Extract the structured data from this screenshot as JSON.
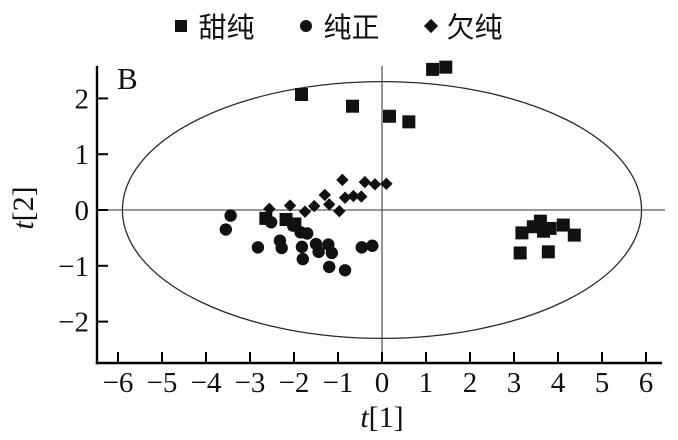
{
  "figure": {
    "panel_label": "B",
    "xlabel_var": "t",
    "xlabel_comp": "[1]",
    "ylabel_var": "t",
    "ylabel_comp": "[2]"
  },
  "legend": {
    "items": [
      {
        "label": "甜纯",
        "marker": "square"
      },
      {
        "label": "纯正",
        "marker": "circle"
      },
      {
        "label": "欠纯",
        "marker": "diamond"
      }
    ]
  },
  "colors": {
    "marker": "#111111",
    "axis": "#000000",
    "reference_line": "#5a5a5a",
    "ellipse_line": "#2b2b2b",
    "background": "#ffffff"
  },
  "chart_data": {
    "type": "scatter",
    "panel": "B",
    "xlabel": "t[1]",
    "ylabel": "t[2]",
    "xlim": [
      -6.5,
      6.4
    ],
    "ylim": [
      -2.75,
      2.6
    ],
    "x_ticks": [
      -6,
      -5,
      -4,
      -3,
      -2,
      -1,
      0,
      1,
      2,
      3,
      4,
      5,
      6
    ],
    "x_tick_labels": [
      "−6",
      "−5",
      "−4",
      "−3",
      "−2",
      "−1",
      "0",
      "1",
      "2",
      "3",
      "4",
      "5",
      "6"
    ],
    "y_ticks": [
      -2,
      -1,
      0,
      1,
      2
    ],
    "y_tick_labels": [
      "−2",
      "−1",
      "0",
      "1",
      "2"
    ],
    "grid": false,
    "legend_position": "top",
    "zero_lines": true,
    "ellipse": {
      "cx": 0,
      "cy": 0,
      "rx": 5.9,
      "ry": 2.3
    },
    "series": [
      {
        "name": "甜纯",
        "marker": "square",
        "points": [
          [
            1.15,
            2.52
          ],
          [
            1.45,
            2.56
          ],
          [
            -1.83,
            2.07
          ],
          [
            -0.67,
            1.86
          ],
          [
            0.17,
            1.68
          ],
          [
            0.61,
            1.58
          ],
          [
            -2.64,
            -0.15
          ],
          [
            -2.18,
            -0.17
          ],
          [
            -1.98,
            -0.25
          ],
          [
            3.18,
            -0.41
          ],
          [
            3.44,
            -0.3
          ],
          [
            3.6,
            -0.2
          ],
          [
            3.67,
            -0.38
          ],
          [
            3.82,
            -0.33
          ],
          [
            4.12,
            -0.27
          ],
          [
            4.37,
            -0.45
          ],
          [
            3.14,
            -0.77
          ],
          [
            3.78,
            -0.75
          ]
        ]
      },
      {
        "name": "纯正",
        "marker": "circle",
        "points": [
          [
            -3.44,
            -0.1
          ],
          [
            -3.55,
            -0.35
          ],
          [
            -2.82,
            -0.67
          ],
          [
            -2.52,
            -0.22
          ],
          [
            -2.32,
            -0.55
          ],
          [
            -2.28,
            -0.68
          ],
          [
            -2.02,
            -0.28
          ],
          [
            -1.85,
            -0.4
          ],
          [
            -1.82,
            -0.66
          ],
          [
            -1.8,
            -0.88
          ],
          [
            -1.7,
            -0.42
          ],
          [
            -1.5,
            -0.61
          ],
          [
            -1.44,
            -0.75
          ],
          [
            -1.22,
            -0.62
          ],
          [
            -1.14,
            -0.77
          ],
          [
            -1.2,
            -1.02
          ],
          [
            -0.84,
            -1.08
          ],
          [
            -0.46,
            -0.67
          ],
          [
            -0.22,
            -0.64
          ]
        ]
      },
      {
        "name": "欠纯",
        "marker": "diamond",
        "points": [
          [
            -2.56,
            0.02
          ],
          [
            -2.09,
            0.08
          ],
          [
            -1.75,
            -0.03
          ],
          [
            -1.54,
            0.07
          ],
          [
            -1.3,
            0.27
          ],
          [
            -1.2,
            0.1
          ],
          [
            -0.97,
            -0.02
          ],
          [
            -0.9,
            0.54
          ],
          [
            -0.84,
            0.22
          ],
          [
            -0.65,
            0.25
          ],
          [
            -0.47,
            0.24
          ],
          [
            -0.39,
            0.5
          ],
          [
            -0.16,
            0.46
          ],
          [
            0.1,
            0.47
          ]
        ]
      }
    ]
  }
}
